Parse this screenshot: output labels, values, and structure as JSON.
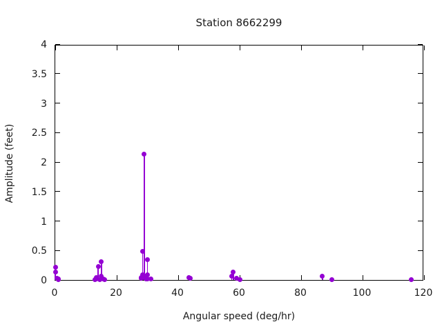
{
  "chart_data": {
    "type": "scatter",
    "style": "impulses-with-points",
    "title": "Station 8662299",
    "xlabel": "Angular speed (deg/hr)",
    "ylabel": "Amplitude (feet)",
    "xlim": [
      0,
      120
    ],
    "ylim": [
      0,
      4
    ],
    "xtick_values": [
      0,
      20,
      40,
      60,
      80,
      100,
      120
    ],
    "xtick_labels": [
      "0",
      "20",
      "40",
      "60",
      "80",
      "100",
      "120"
    ],
    "ytick_values": [
      0,
      0.5,
      1,
      1.5,
      2,
      2.5,
      3,
      3.5,
      4
    ],
    "ytick_labels": [
      "0",
      "0.5",
      "1",
      "1.5",
      "2",
      "2.5",
      "3",
      "3.5",
      "4"
    ],
    "grid": false,
    "legend": "none",
    "point_color": "#9400d3",
    "axis_color": "#000000",
    "background_color": "#ffffff",
    "points": [
      {
        "x": 0.041,
        "y": 0.22
      },
      {
        "x": 0.082,
        "y": 0.14
      },
      {
        "x": 0.544,
        "y": 0.03
      },
      {
        "x": 1.016,
        "y": 0.01
      },
      {
        "x": 1.098,
        "y": 0.02
      },
      {
        "x": 12.855,
        "y": 0.01
      },
      {
        "x": 13.399,
        "y": 0.04
      },
      {
        "x": 13.472,
        "y": 0.02
      },
      {
        "x": 13.943,
        "y": 0.23
      },
      {
        "x": 14.497,
        "y": 0.01
      },
      {
        "x": 14.959,
        "y": 0.07
      },
      {
        "x": 15.041,
        "y": 0.31
      },
      {
        "x": 15.585,
        "y": 0.02
      },
      {
        "x": 16.139,
        "y": 0.01
      },
      {
        "x": 27.895,
        "y": 0.03
      },
      {
        "x": 27.968,
        "y": 0.04
      },
      {
        "x": 28.439,
        "y": 0.49
      },
      {
        "x": 28.512,
        "y": 0.09
      },
      {
        "x": 28.984,
        "y": 2.14
      },
      {
        "x": 29.456,
        "y": 0.02
      },
      {
        "x": 29.528,
        "y": 0.06
      },
      {
        "x": 29.959,
        "y": 0.02
      },
      {
        "x": 30.0,
        "y": 0.34
      },
      {
        "x": 30.082,
        "y": 0.09
      },
      {
        "x": 31.016,
        "y": 0.02
      },
      {
        "x": 43.476,
        "y": 0.04
      },
      {
        "x": 44.025,
        "y": 0.03
      },
      {
        "x": 57.424,
        "y": 0.06
      },
      {
        "x": 57.968,
        "y": 0.14
      },
      {
        "x": 58.984,
        "y": 0.03
      },
      {
        "x": 60.0,
        "y": 0.01
      },
      {
        "x": 86.952,
        "y": 0.06
      },
      {
        "x": 90.0,
        "y": 0.01
      },
      {
        "x": 115.936,
        "y": 0.01
      }
    ]
  }
}
